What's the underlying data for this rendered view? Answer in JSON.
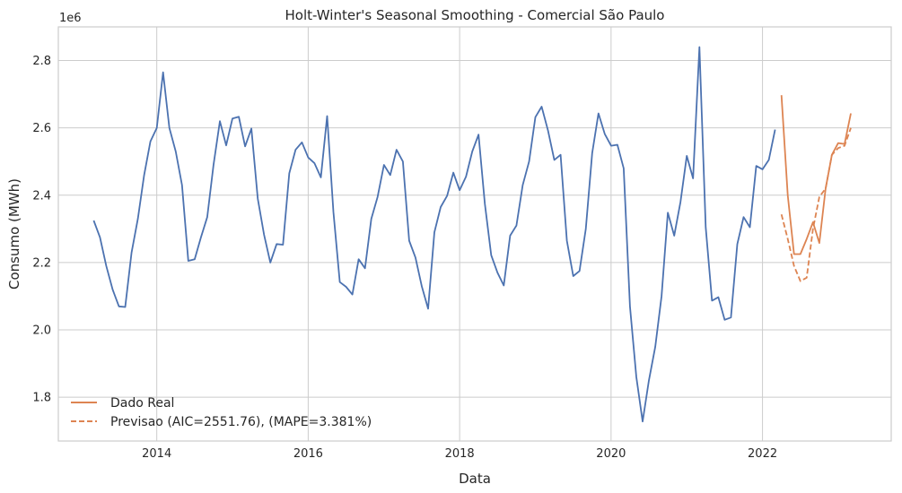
{
  "chart_data": {
    "type": "line",
    "title": "Holt-Winter's Seasonal Smoothing - Comercial São Paulo",
    "xlabel": "Data",
    "ylabel": "Consumo (MWh)",
    "y_offset_text": "1e6",
    "xlim": [
      2012.7,
      2023.7
    ],
    "ylim": [
      1.67,
      2.9
    ],
    "x_ticks": [
      2014,
      2016,
      2018,
      2020,
      2022
    ],
    "x_tick_labels": [
      "2014",
      "2016",
      "2018",
      "2020",
      "2022"
    ],
    "y_ticks": [
      1.8,
      2.0,
      2.2,
      2.4,
      2.6,
      2.8
    ],
    "y_tick_labels": [
      "1.8",
      "2.0",
      "2.2",
      "2.4",
      "2.6",
      "2.8"
    ],
    "grid": true,
    "legend_position": "lower-left",
    "colors": {
      "history": "#4c72b0",
      "forecast": "#dd8452",
      "grid": "#cccccc"
    },
    "history": {
      "start": "2013-03",
      "values": [
        2.325,
        2.275,
        2.19,
        2.12,
        2.07,
        2.068,
        2.23,
        2.33,
        2.46,
        2.56,
        2.6,
        2.765,
        2.6,
        2.53,
        2.43,
        2.205,
        2.21,
        2.275,
        2.335,
        2.49,
        2.62,
        2.548,
        2.628,
        2.633,
        2.545,
        2.598,
        2.39,
        2.283,
        2.2,
        2.255,
        2.253,
        2.465,
        2.535,
        2.557,
        2.512,
        2.495,
        2.453,
        2.635,
        2.35,
        2.142,
        2.128,
        2.105,
        2.21,
        2.183,
        2.33,
        2.395,
        2.49,
        2.46,
        2.535,
        2.5,
        2.265,
        2.215,
        2.13,
        2.063,
        2.29,
        2.365,
        2.398,
        2.467,
        2.415,
        2.455,
        2.53,
        2.58,
        2.375,
        2.222,
        2.17,
        2.132,
        2.28,
        2.31,
        2.43,
        2.5,
        2.632,
        2.663,
        2.592,
        2.505,
        2.52,
        2.265,
        2.16,
        2.175,
        2.3,
        2.525,
        2.643,
        2.582,
        2.547,
        2.55,
        2.48,
        2.07,
        1.86,
        1.728,
        1.85,
        1.95,
        2.1,
        2.348,
        2.28,
        2.38,
        2.517,
        2.45,
        2.84,
        2.305,
        2.087,
        2.097,
        2.03,
        2.037,
        2.255,
        2.335,
        2.305,
        2.487,
        2.477,
        2.505,
        2.595
      ]
    },
    "series": [
      {
        "name": "Dado Real",
        "style": "solid",
        "start": "2022-04",
        "values": [
          2.697,
          2.4,
          2.225,
          2.225,
          2.27,
          2.32,
          2.258,
          2.42,
          2.52,
          2.555,
          2.552,
          2.643
        ]
      },
      {
        "name": "Previsao (AIC=2551.76), (MAPE=3.381%)",
        "style": "dashed",
        "start": "2022-04",
        "values": [
          2.343,
          2.27,
          2.19,
          2.145,
          2.155,
          2.3,
          2.395,
          2.42,
          2.52,
          2.54,
          2.547,
          2.6
        ]
      }
    ]
  }
}
